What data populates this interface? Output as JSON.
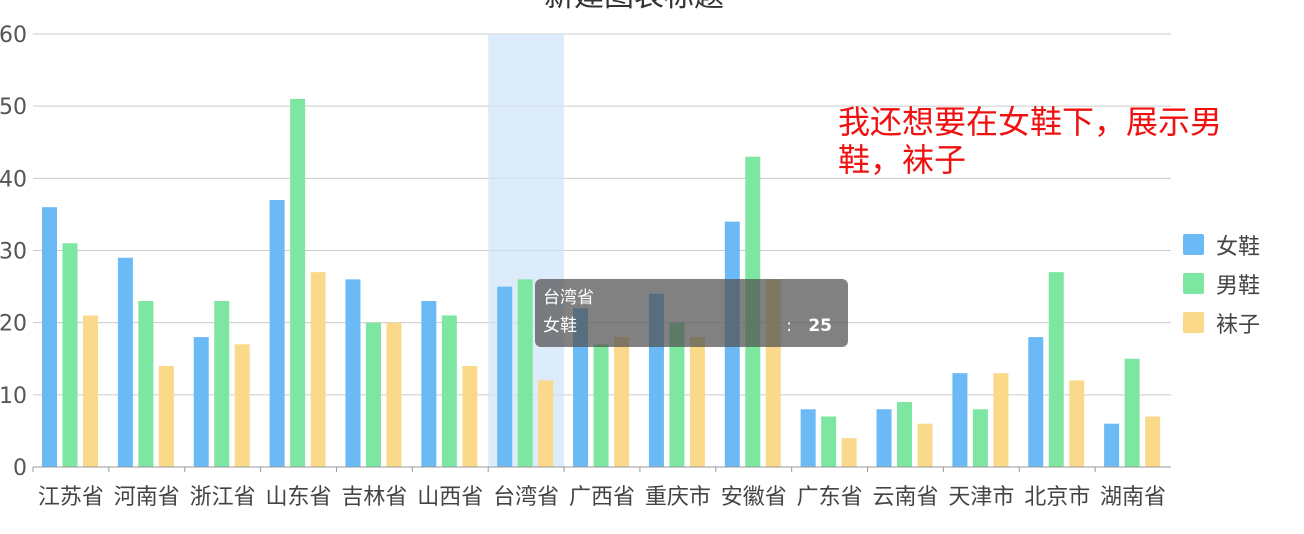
{
  "chart_data": {
    "type": "bar",
    "title": "新建图表标题",
    "categories": [
      "江苏省",
      "河南省",
      "浙江省",
      "山东省",
      "吉林省",
      "山西省",
      "台湾省",
      "广西省",
      "重庆市",
      "安徽省",
      "广东省",
      "云南省",
      "天津市",
      "北京市",
      "湖南省"
    ],
    "series": [
      {
        "name": "女鞋",
        "color": "#6bbaf5",
        "values": [
          36,
          29,
          18,
          37,
          26,
          23,
          25,
          22,
          24,
          34,
          8,
          8,
          13,
          18,
          6
        ]
      },
      {
        "name": "男鞋",
        "color": "#7de6a0",
        "values": [
          31,
          23,
          23,
          51,
          20,
          21,
          26,
          17,
          20,
          43,
          7,
          9,
          8,
          27,
          15
        ]
      },
      {
        "name": "袜子",
        "color": "#fbd98a",
        "values": [
          21,
          14,
          17,
          27,
          20,
          14,
          12,
          18,
          18,
          26,
          4,
          6,
          13,
          12,
          7
        ]
      }
    ],
    "ylim": [
      0,
      60
    ],
    "yticks": [
      "0",
      "10",
      "20",
      "30",
      "40",
      "50",
      "60"
    ],
    "grid": true,
    "legend_position": "right",
    "highlighted_category": "台湾省"
  },
  "tooltip": {
    "title": "台湾省",
    "series_label": "女鞋",
    "colon": ":",
    "value": "25"
  },
  "annotation": {
    "text": "我还想要在女鞋下，展示男鞋，袜子",
    "color": "#f01010"
  }
}
